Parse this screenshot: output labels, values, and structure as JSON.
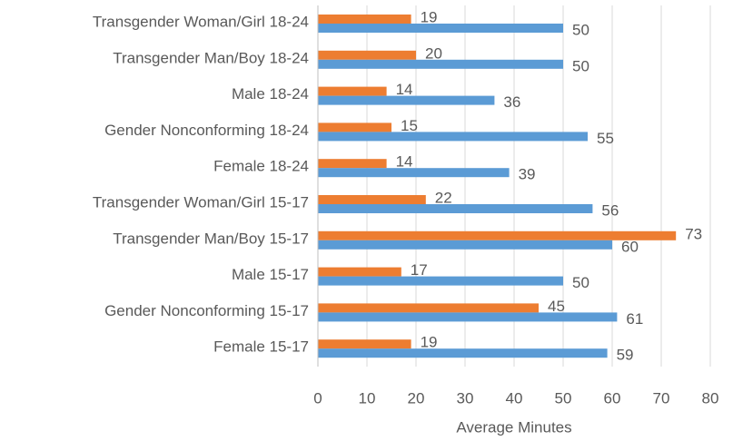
{
  "chart_data": {
    "type": "bar",
    "orientation": "horizontal",
    "x_label": "Average Minutes",
    "categories": [
      "Transgender Woman/Girl 18-24",
      "Transgender Man/Boy 18-24",
      "Male 18-24",
      "Gender Nonconforming 18-24",
      "Female 18-24",
      "Transgender Woman/Girl 15-17",
      "Transgender Man/Boy 15-17",
      "Male 15-17",
      "Gender Nonconforming 15-17",
      "Female 15-17"
    ],
    "series": [
      {
        "color": "#ed7d31",
        "values": [
          19,
          20,
          14,
          15,
          14,
          22,
          73,
          17,
          45,
          19
        ]
      },
      {
        "color": "#5b9bd5",
        "values": [
          50,
          50,
          36,
          55,
          39,
          56,
          60,
          50,
          61,
          59
        ]
      }
    ],
    "xlim": [
      0,
      80
    ],
    "xticks": [
      0,
      10,
      20,
      30,
      40,
      50,
      60,
      70,
      80
    ],
    "grid": true
  }
}
